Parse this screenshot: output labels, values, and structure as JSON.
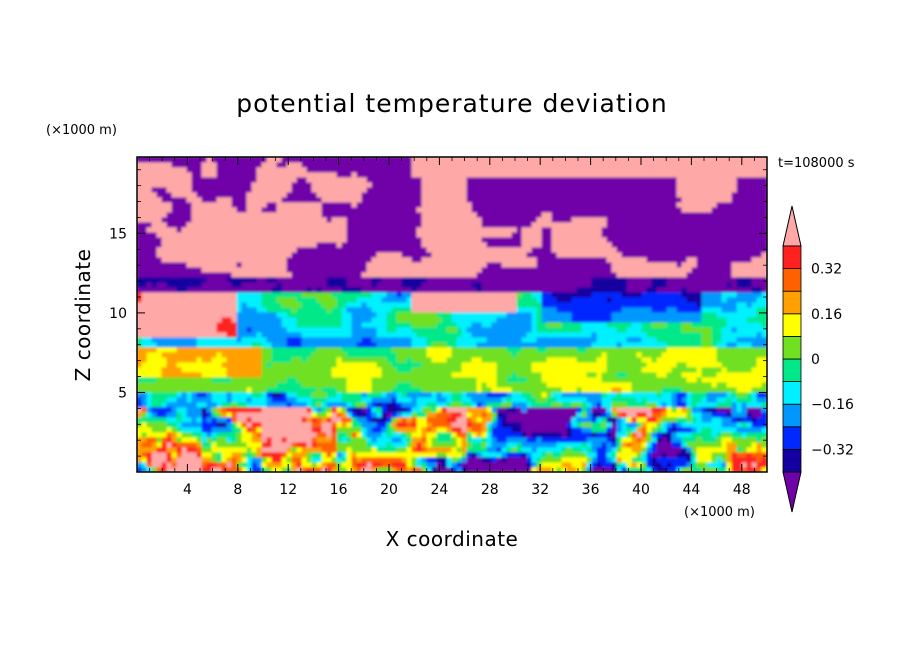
{
  "chart_data": {
    "type": "heatmap",
    "title": "potential temperature deviation",
    "xlabel": "X coordinate",
    "ylabel": "Z coordinate",
    "x_unit": "(×1000 m)",
    "y_unit": "(×1000 m)",
    "time_label": "t=108000 s",
    "xlim": [
      0,
      50
    ],
    "ylim": [
      0,
      19.8
    ],
    "x_ticks": [
      4,
      8,
      12,
      16,
      20,
      24,
      28,
      32,
      36,
      40,
      44,
      48
    ],
    "y_ticks": [
      5,
      10,
      15
    ],
    "colorbar": {
      "levels": [
        -0.48,
        -0.4,
        -0.32,
        -0.24,
        -0.16,
        -0.08,
        0,
        0.08,
        0.16,
        0.24,
        0.32,
        0.4,
        0.48
      ],
      "labels": [
        "0.32",
        "0.16",
        "0",
        "−0.16",
        "−0.32"
      ],
      "label_values": [
        0.32,
        0.16,
        0,
        -0.16,
        -0.32
      ],
      "colors": [
        "#7000a8",
        "#1400a0",
        "#0028ff",
        "#0098ff",
        "#00f0ff",
        "#00e888",
        "#70e020",
        "#ffff00",
        "#ffa000",
        "#ff6000",
        "#ff2020",
        "#ffa8a8"
      ],
      "extend": "both"
    }
  }
}
